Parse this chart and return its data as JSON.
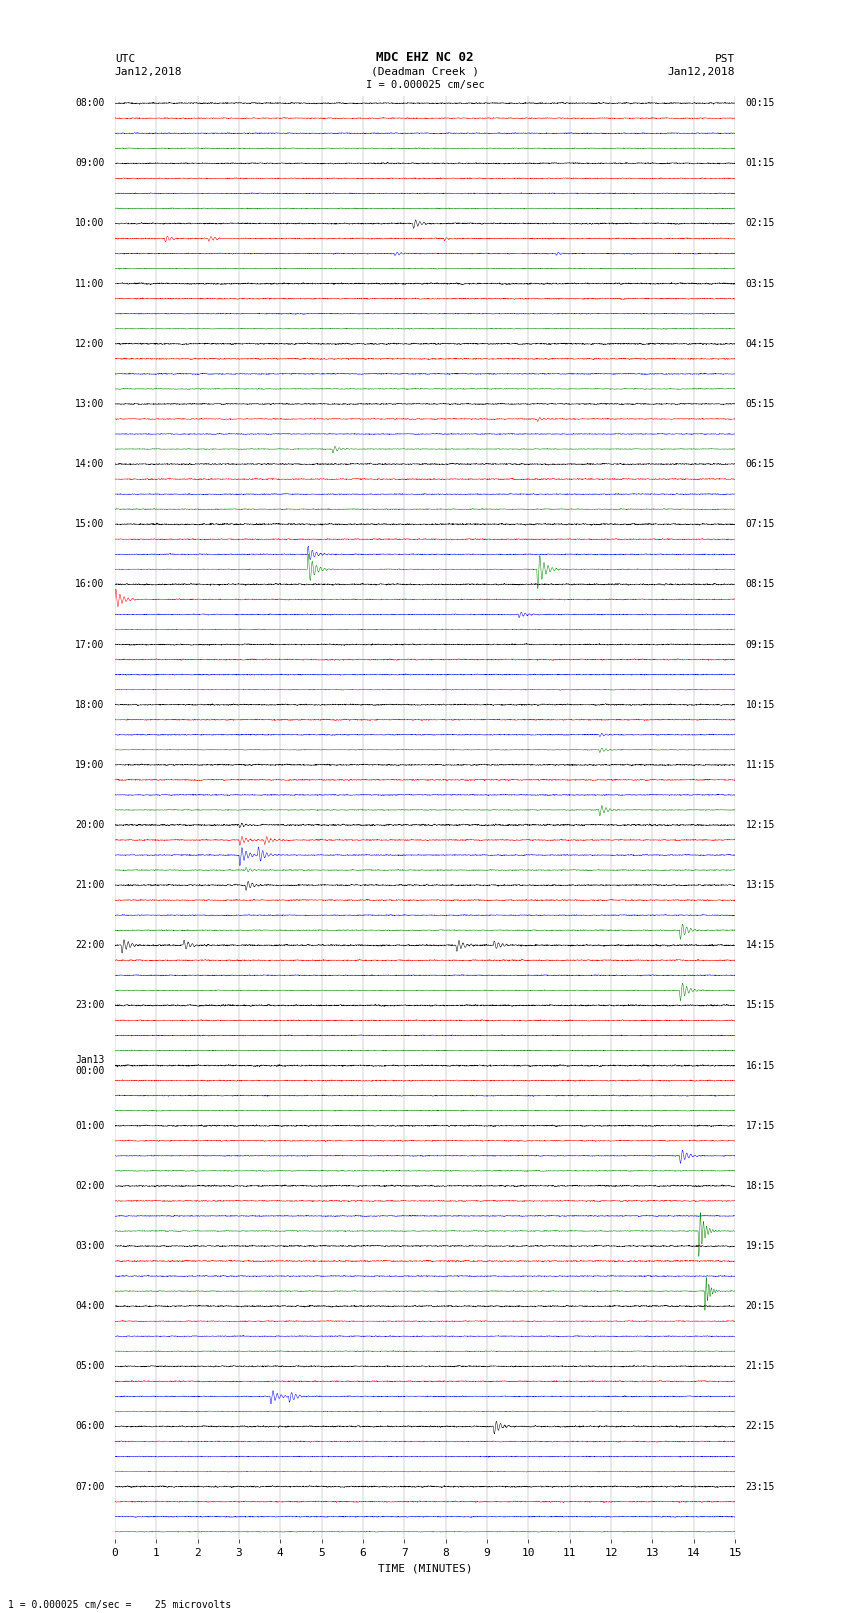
{
  "title_line1": "MDC EHZ NC 02",
  "title_line2": "(Deadman Creek )",
  "scale_label": "I = 0.000025 cm/sec",
  "scale_label2": "1 = 0.000025 cm/sec =    25 microvolts",
  "utc_label": "UTC",
  "utc_date": "Jan12,2018",
  "pst_label": "PST",
  "pst_date": "Jan12,2018",
  "xlabel": "TIME (MINUTES)",
  "xlim": [
    0,
    15
  ],
  "background_color": "#ffffff",
  "trace_colors": [
    "black",
    "red",
    "blue",
    "green"
  ],
  "figsize": [
    8.5,
    16.13
  ],
  "dpi": 100,
  "n_hours": 24,
  "traces_per_hour": 4,
  "hour_labels_utc": [
    "08:00",
    "09:00",
    "10:00",
    "11:00",
    "12:00",
    "13:00",
    "14:00",
    "15:00",
    "16:00",
    "17:00",
    "18:00",
    "19:00",
    "20:00",
    "21:00",
    "22:00",
    "23:00",
    "Jan13\n00:00",
    "01:00",
    "02:00",
    "03:00",
    "04:00",
    "05:00",
    "06:00",
    "07:00"
  ],
  "hour_labels_pst": [
    "00:15",
    "01:15",
    "02:15",
    "03:15",
    "04:15",
    "05:15",
    "06:15",
    "07:15",
    "08:15",
    "09:15",
    "10:15",
    "11:15",
    "12:15",
    "13:15",
    "14:15",
    "15:15",
    "16:15",
    "17:15",
    "18:15",
    "19:15",
    "20:15",
    "21:15",
    "22:15",
    "23:15"
  ]
}
